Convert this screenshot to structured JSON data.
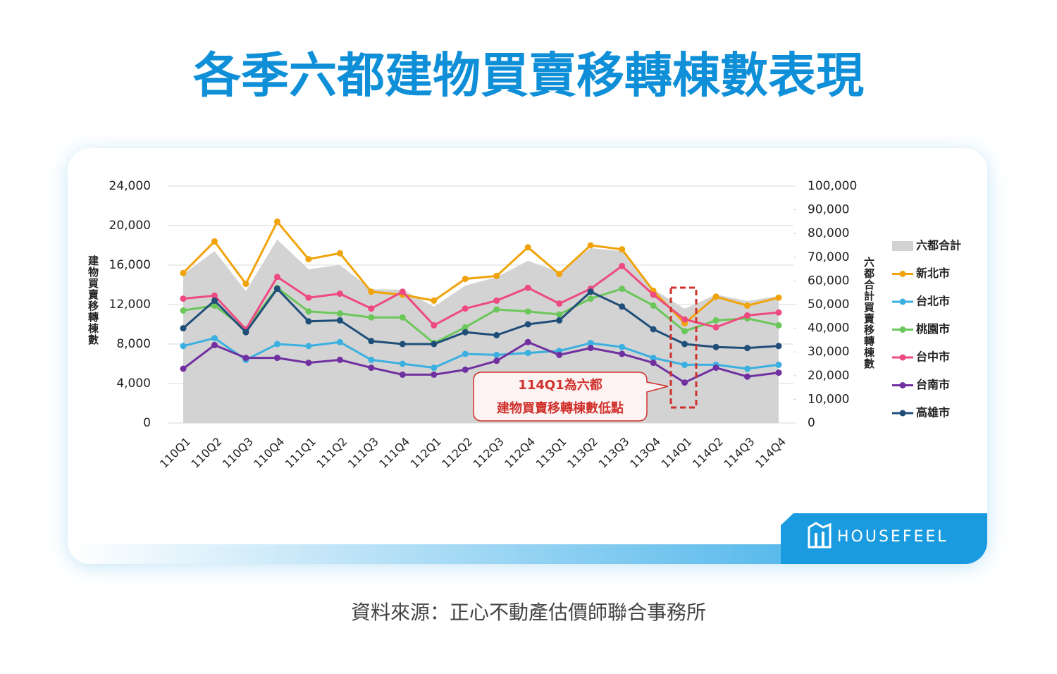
{
  "title": "各季六都建物買賣移轉棟數表現",
  "source": "資料來源：正心不動產估價師聯合事務所",
  "logo": "HOUSEFEEL",
  "chart_data": {
    "type": "line",
    "categories": [
      "110Q1",
      "110Q2",
      "110Q3",
      "110Q4",
      "111Q1",
      "111Q2",
      "111Q3",
      "111Q4",
      "112Q1",
      "112Q2",
      "112Q3",
      "112Q4",
      "113Q1",
      "113Q2",
      "113Q3",
      "113Q4",
      "114Q1",
      "114Q2",
      "114Q3",
      "114Q4"
    ],
    "y_label": "建物買賣移轉棟數",
    "y2_label": "六都合計買賣移轉棟數",
    "ylim": [
      0,
      24000
    ],
    "yticks": [
      {
        "value": 0,
        "label": "0"
      },
      {
        "value": 4000,
        "label": "4,000"
      },
      {
        "value": 8000,
        "label": "8,000"
      },
      {
        "value": 12000,
        "label": "12,000"
      },
      {
        "value": 16000,
        "label": "16,000"
      },
      {
        "value": 20000,
        "label": "20,000"
      },
      {
        "value": 24000,
        "label": "24,000"
      }
    ],
    "y2lim": [
      0,
      100000
    ],
    "y2ticks": [
      {
        "value": 0,
        "label": "0"
      },
      {
        "value": 10000,
        "label": "10,000"
      },
      {
        "value": 20000,
        "label": "20,000"
      },
      {
        "value": 30000,
        "label": "30,000"
      },
      {
        "value": 40000,
        "label": "40,000"
      },
      {
        "value": 50000,
        "label": "50,000"
      },
      {
        "value": 60000,
        "label": "60,000"
      },
      {
        "value": 70000,
        "label": "70,000"
      },
      {
        "value": 80000,
        "label": "80,000"
      },
      {
        "value": 90000,
        "label": "90,000"
      },
      {
        "value": 100000,
        "label": "100,000"
      }
    ],
    "grid": true,
    "legend": "right",
    "series": [
      {
        "name": "六都合計",
        "type": "area",
        "axis": "y2",
        "color": "#d3d3d3",
        "values": [
          62800,
          72600,
          55700,
          77400,
          64900,
          66700,
          56500,
          56300,
          49100,
          58000,
          61600,
          68500,
          63700,
          73800,
          72600,
          56500,
          48200,
          54200,
          51500,
          53600
        ]
      },
      {
        "name": "新北市",
        "color": "#f0a30a",
        "values": [
          15200,
          18400,
          14100,
          20400,
          16600,
          17200,
          13300,
          13000,
          12400,
          14600,
          14900,
          17800,
          15100,
          18000,
          17600,
          13400,
          10100,
          12800,
          11900,
          12700
        ]
      },
      {
        "name": "台北市",
        "color": "#3bb0e0",
        "values": [
          7800,
          8600,
          6400,
          8000,
          7800,
          8200,
          6400,
          6000,
          5600,
          7000,
          6900,
          7100,
          7300,
          8100,
          7700,
          6600,
          5900,
          5900,
          5500,
          5900
        ]
      },
      {
        "name": "桃園市",
        "color": "#6cc75a",
        "values": [
          11400,
          11900,
          9500,
          13700,
          11300,
          11100,
          10700,
          10700,
          8100,
          9700,
          11500,
          11300,
          11000,
          12600,
          13600,
          11900,
          9300,
          10400,
          10600,
          9900
        ]
      },
      {
        "name": "台中市",
        "color": "#ee4a82",
        "values": [
          12600,
          12900,
          9500,
          14800,
          12700,
          13100,
          11600,
          13300,
          9900,
          11600,
          12400,
          13700,
          12100,
          13600,
          15900,
          13000,
          10500,
          9700,
          10900,
          11200
        ]
      },
      {
        "name": "台南市",
        "color": "#7030a0",
        "values": [
          5500,
          7900,
          6600,
          6600,
          6100,
          6400,
          5600,
          4900,
          4900,
          5400,
          6300,
          8200,
          6900,
          7600,
          7000,
          6100,
          4100,
          5600,
          4700,
          5100
        ]
      },
      {
        "name": "高雄市",
        "color": "#1f4e79",
        "values": [
          9600,
          12400,
          9200,
          13600,
          10300,
          10400,
          8300,
          8000,
          8000,
          9200,
          8900,
          10000,
          10400,
          13300,
          11800,
          9500,
          8000,
          7700,
          7600,
          7800
        ]
      }
    ],
    "annotation": [
      "114Q1為六都",
      "建物買賣移轉棟數低點"
    ]
  }
}
